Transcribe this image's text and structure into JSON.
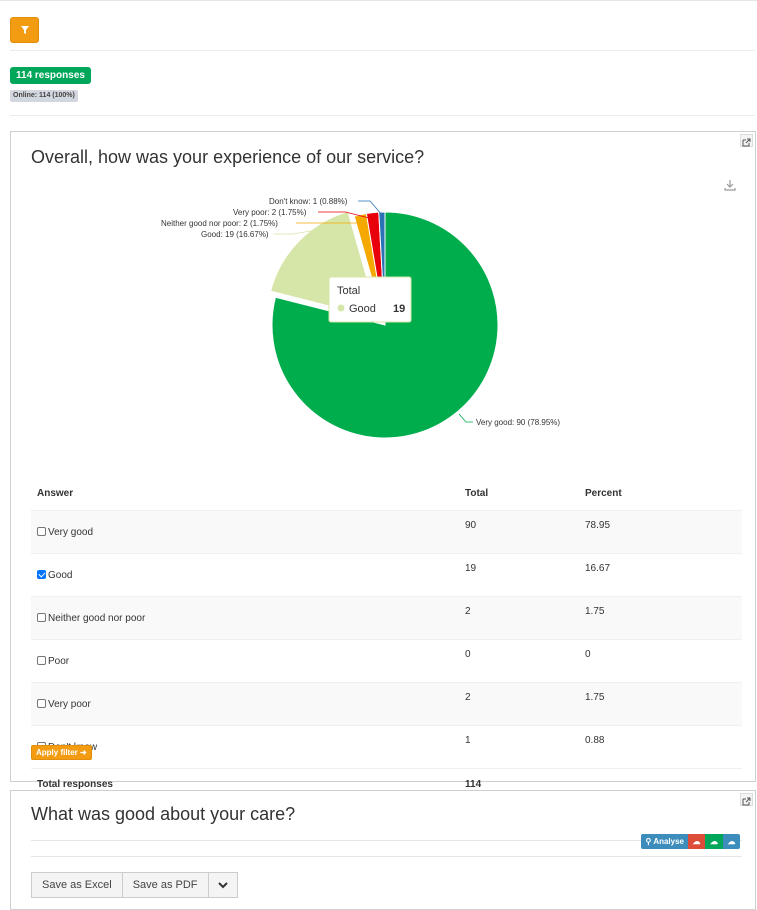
{
  "header": {
    "filter_icon": "filter-icon",
    "responses_badge": "114 responses",
    "online_badge": "Online: 114 (100%)"
  },
  "question1": {
    "title": "Overall, how was your experience of our service?",
    "open_icon": "external-link-icon",
    "download_icon": "download-icon",
    "tooltip": {
      "title": "Total",
      "label": "Good",
      "value": "19"
    },
    "chart_labels": {
      "dont_know": "Don't know: 1 (0.88%)",
      "very_poor": "Very poor: 2 (1.75%)",
      "neither": "Neither good nor poor: 2 (1.75%)",
      "good": "Good: 19 (16.67%)",
      "very_good": "Very good: 90 (78.95%)"
    },
    "table": {
      "headers": [
        "Answer",
        "Total",
        "Percent"
      ],
      "rows": [
        {
          "answer": "Very good",
          "total": "90",
          "percent": "78.95",
          "checked": false
        },
        {
          "answer": "Good",
          "total": "19",
          "percent": "16.67",
          "checked": true
        },
        {
          "answer": "Neither good nor poor",
          "total": "2",
          "percent": "1.75",
          "checked": false
        },
        {
          "answer": "Poor",
          "total": "0",
          "percent": "0",
          "checked": false
        },
        {
          "answer": "Very poor",
          "total": "2",
          "percent": "1.75",
          "checked": false
        },
        {
          "answer": "Don't know",
          "total": "1",
          "percent": "0.88",
          "checked": false
        }
      ],
      "total_label": "Total responses",
      "total_value": "114"
    },
    "apply_filter": "Apply filter"
  },
  "question2": {
    "title": "What was good about your care?",
    "analyse_label": "Analyse",
    "save_excel": "Save as Excel",
    "save_pdf": "Save as PDF"
  },
  "chart_data": {
    "type": "pie",
    "title": "",
    "categories": [
      "Very good",
      "Good",
      "Neither good nor poor",
      "Poor",
      "Very poor",
      "Don't know"
    ],
    "values": [
      90,
      19,
      2,
      0,
      2,
      1
    ],
    "percents": [
      78.95,
      16.67,
      1.75,
      0,
      1.75,
      0.88
    ],
    "colors": [
      "#00ad4d",
      "#d6e6a8",
      "#f5a800",
      "#888888",
      "#e8000a",
      "#2a72b4"
    ],
    "highlighted": "Good"
  }
}
